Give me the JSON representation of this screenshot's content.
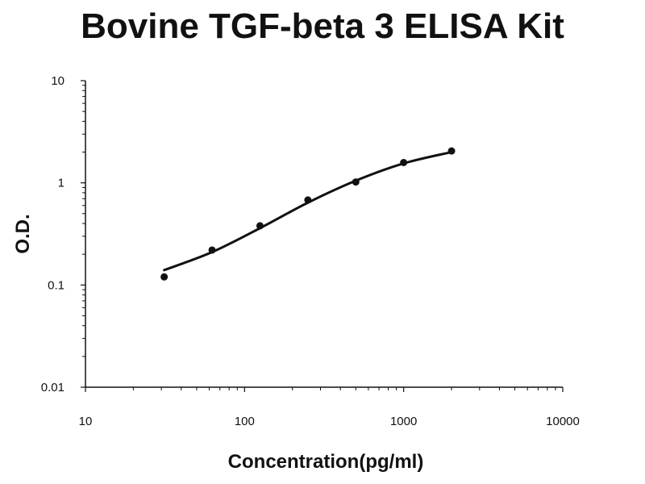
{
  "chart_data": {
    "type": "scatter",
    "title": "Bovine TGF-beta 3 ELISA Kit",
    "xlabel": "Concentration(pg/ml)",
    "ylabel": "O.D.",
    "xscale": "log",
    "yscale": "log",
    "xlim": [
      10,
      10000
    ],
    "ylim": [
      0.01,
      10
    ],
    "grid": false,
    "legend": "none",
    "x_ticks": [
      "10",
      "100",
      "1000",
      "10000"
    ],
    "y_ticks": [
      "0.01",
      "0.1",
      "1",
      "10"
    ],
    "series": [
      {
        "points": [
          {
            "x": 31.25,
            "y": 0.12
          },
          {
            "x": 62.5,
            "y": 0.22
          },
          {
            "x": 125,
            "y": 0.38
          },
          {
            "x": 250,
            "y": 0.68
          },
          {
            "x": 500,
            "y": 1.02
          },
          {
            "x": 1000,
            "y": 1.58
          },
          {
            "x": 2000,
            "y": 2.05
          }
        ],
        "fit_curve": {
          "type": "smooth",
          "points": [
            {
              "x": 31.25,
              "y": 0.14
            },
            {
              "x": 62.5,
              "y": 0.21
            },
            {
              "x": 125,
              "y": 0.36
            },
            {
              "x": 250,
              "y": 0.64
            },
            {
              "x": 500,
              "y": 1.05
            },
            {
              "x": 1000,
              "y": 1.55
            },
            {
              "x": 2000,
              "y": 2.0
            }
          ]
        },
        "color": "#111111"
      }
    ]
  }
}
